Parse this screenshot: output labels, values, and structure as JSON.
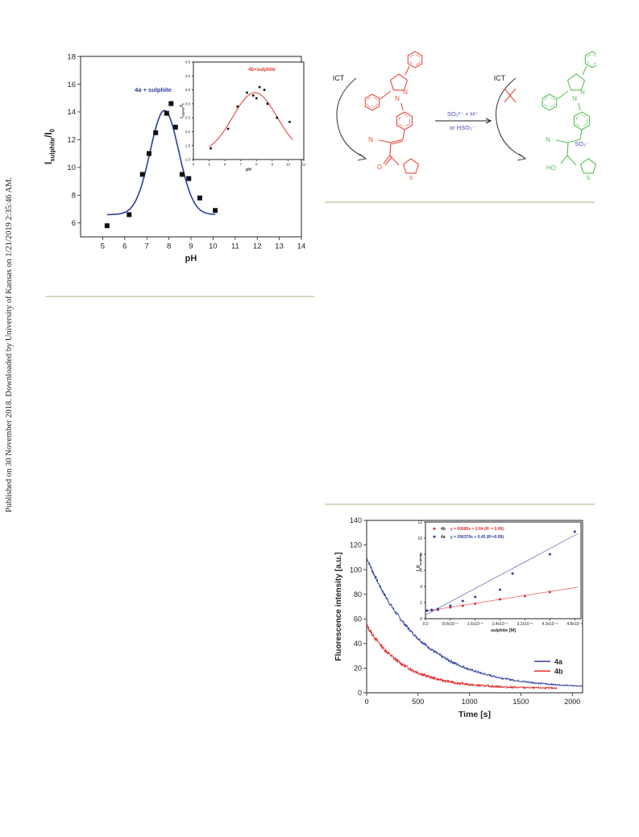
{
  "side_note": "Published on 30 November 2018. Downloaded by University of Kansas on 1/21/2019 2:35:46 AM.",
  "chart_data": [
    {
      "type": "scatter",
      "id": "ph_main",
      "xlabel": "pH",
      "ylabel": "I",
      "ylabel_sub": "sulphite",
      "ylabel_tail": "/I",
      "ylabel_sub2": "0",
      "xlim": [
        4,
        14
      ],
      "ylim": [
        5,
        18
      ],
      "xticks": [
        5,
        6,
        7,
        8,
        9,
        10,
        11,
        12,
        13,
        14
      ],
      "yticks": [
        6,
        8,
        10,
        12,
        14,
        16,
        18
      ],
      "annotation": "4a + sulphite",
      "annotation_color": "#2b3d9e",
      "series": [
        {
          "points": [
            [
              5.2,
              5.8
            ],
            [
              6.2,
              6.6
            ],
            [
              6.8,
              9.5
            ],
            [
              7.1,
              11.0
            ],
            [
              7.4,
              12.5
            ],
            [
              7.9,
              13.9
            ],
            [
              8.1,
              14.6
            ],
            [
              8.3,
              12.9
            ],
            [
              8.6,
              9.5
            ],
            [
              8.9,
              9.2
            ],
            [
              9.4,
              7.8
            ],
            [
              10.1,
              6.9
            ]
          ],
          "fit": {
            "base": 6.6,
            "amp": 7.5,
            "center": 7.8,
            "width": 0.65
          },
          "color": "#2b3d9e"
        }
      ]
    },
    {
      "type": "scatter",
      "id": "ph_inset",
      "xlabel": "pH",
      "ylabel": "I",
      "ylabel_sub": "sulphite",
      "ylabel_tail": "/I",
      "ylabel_sub2": "0",
      "xlim": [
        4,
        11
      ],
      "ylim": [
        1.0,
        4.5
      ],
      "xticks": [
        4,
        5,
        6,
        7,
        8,
        9,
        10,
        11
      ],
      "yticks": [
        1.0,
        1.5,
        2.0,
        2.5,
        3.0,
        3.5,
        4.0,
        4.5
      ],
      "annotation": "4b+sulphite",
      "annotation_color": "#e03030",
      "series": [
        {
          "points": [
            [
              5.1,
              1.4
            ],
            [
              6.2,
              2.1
            ],
            [
              6.8,
              2.9
            ],
            [
              7.4,
              3.4
            ],
            [
              7.8,
              3.3
            ],
            [
              8.0,
              3.2
            ],
            [
              8.2,
              3.6
            ],
            [
              8.5,
              3.5
            ],
            [
              8.7,
              3.0
            ],
            [
              9.3,
              2.5
            ],
            [
              10.1,
              2.35
            ]
          ],
          "fit": {
            "base": 1.2,
            "amp": 2.2,
            "center": 7.9,
            "width": 1.4
          },
          "color": "#e03030"
        }
      ]
    },
    {
      "type": "line",
      "id": "kinetics_main",
      "xlabel": "Time [s]",
      "ylabel": "Fluorescence intensity [a.u.]",
      "xlim": [
        0,
        2100
      ],
      "ylim": [
        0,
        140
      ],
      "xticks": [
        0,
        500,
        1000,
        1500,
        2000
      ],
      "yticks": [
        0,
        20,
        40,
        60,
        80,
        100,
        120,
        140
      ],
      "series": [
        {
          "name": "4a",
          "color": "#2b3d9e",
          "decay": {
            "y0": 110,
            "yinf": 3.5,
            "tau": 520,
            "xmax": 2100
          }
        },
        {
          "name": "4b",
          "color": "#e03030",
          "decay": {
            "y0": 55,
            "yinf": 3.5,
            "tau": 360,
            "xmax": 1850
          }
        }
      ]
    },
    {
      "type": "scatter",
      "id": "kinetics_inset",
      "xlabel": "sulphite [M]",
      "ylabel": "I",
      "ylabel_sub": "0",
      "ylabel_tail": "/I",
      "ylabel_sub2": "sulphite",
      "xlim": [
        0,
        5e-05
      ],
      "ylim": [
        0,
        12
      ],
      "xticks": [
        0.0,
        8e-06,
        1.6e-05,
        2.4e-05,
        3.2e-05,
        4e-05,
        4.8e-05
      ],
      "xtick_labels": [
        "0.0",
        "8.0x10⁻⁶",
        "1.6x10⁻⁵",
        "2.4x10⁻⁵",
        "3.2x10⁻⁵",
        "4.0x10⁻⁵",
        "4.8x10⁻⁵"
      ],
      "yticks": [
        0,
        2,
        4,
        6,
        8,
        10,
        12
      ],
      "series": [
        {
          "label": "4b",
          "equation": "y = 60685x + 0.94 (R² = 0.99)",
          "color": "#e03030",
          "points": [
            [
              5e-07,
              1.0
            ],
            [
              2e-06,
              1.05
            ],
            [
              4e-06,
              1.1
            ],
            [
              8e-06,
              1.4
            ],
            [
              1.2e-05,
              1.6
            ],
            [
              1.6e-05,
              1.85
            ],
            [
              2.4e-05,
              2.4
            ],
            [
              3.2e-05,
              2.8
            ],
            [
              4e-05,
              3.3
            ]
          ],
          "line": [
            0.94,
            60685
          ]
        },
        {
          "label": "4a",
          "equation": "y = 206370x + 0.45 (R²=0.99)",
          "color": "#2b3d9e",
          "points": [
            [
              5e-07,
              1.0
            ],
            [
              2e-06,
              1.1
            ],
            [
              4e-06,
              1.2
            ],
            [
              8e-06,
              1.6
            ],
            [
              1.2e-05,
              2.2
            ],
            [
              1.6e-05,
              2.7
            ],
            [
              2.4e-05,
              3.6
            ],
            [
              2.8e-05,
              5.6
            ],
            [
              4e-05,
              8.0
            ],
            [
              4.8e-05,
              10.8
            ]
          ],
          "line": [
            0.45,
            206370
          ]
        }
      ]
    }
  ],
  "scheme": {
    "left_label": "ICT",
    "right_label": "ICT",
    "arrow_top": "SO₃²⁻ + H⁺",
    "arrow_bottom": "or  HSO₃⁻",
    "left_atoms": {
      "n1": "N",
      "n2": "N",
      "cn": "N",
      "o": "O",
      "s": "S"
    },
    "right_atoms": {
      "n1": "N",
      "n2": "N",
      "cn": "N",
      "ho": "HO",
      "so3": "SO₃⁻",
      "s": "S"
    },
    "left_color": "#e84a3c",
    "right_color": "#5bbf5b",
    "text_color": "#4a4fb0"
  }
}
